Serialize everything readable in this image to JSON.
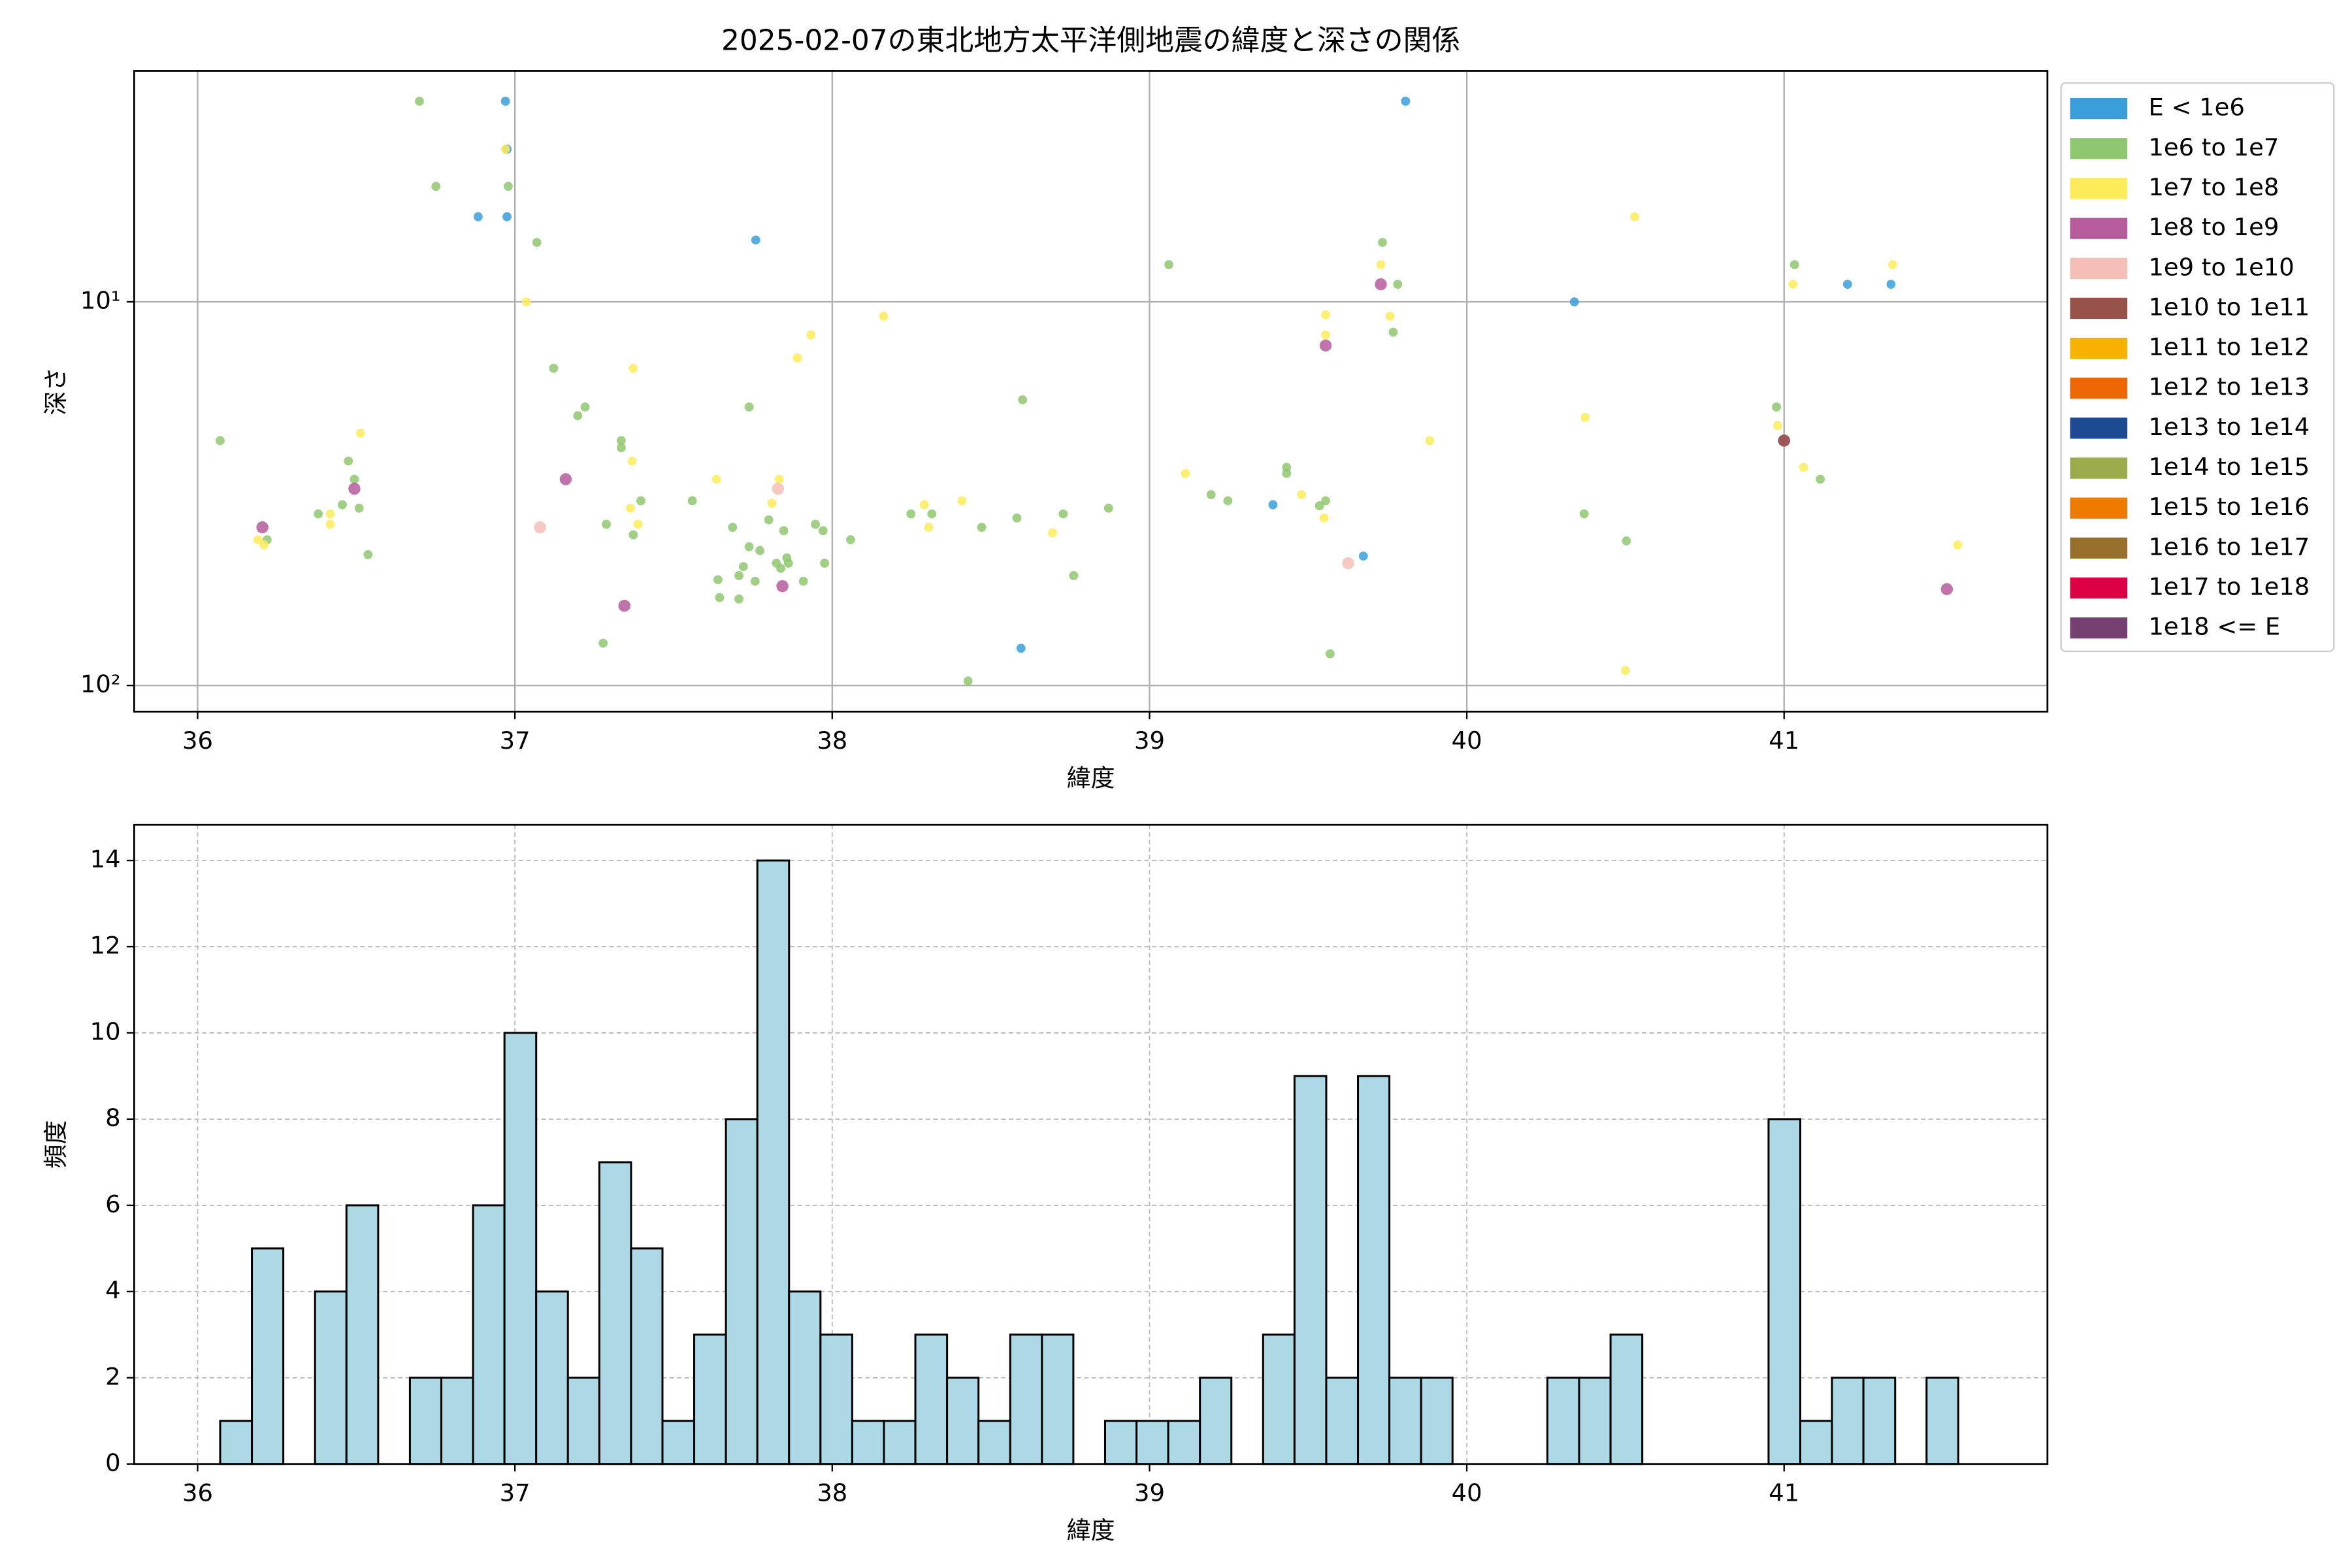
{
  "chart_data": [
    {
      "type": "scatter",
      "title": "2025-02-07の東北地方太平洋側地震の緯度と深さの関係",
      "xlabel": "緯度",
      "ylabel": "深さ",
      "xlim": [
        35.8,
        41.83
      ],
      "xticks": [
        36,
        37,
        38,
        39,
        40,
        41
      ],
      "ylim": [
        2.5,
        117
      ],
      "y_inverted": true,
      "log_y": true,
      "yticks": [
        {
          "value": 10,
          "label": "10¹"
        },
        {
          "value": 100,
          "label": "10²"
        }
      ],
      "grid": true,
      "legend": "outside right",
      "series": [
        {
          "name": "E < 1e6",
          "color": "#3a9edb",
          "x": [
            36.97,
            36.975,
            36.884,
            36.975,
            37.759,
            39.807,
            40.339,
            41.2,
            41.337,
            39.389,
            39.674,
            38.595
          ],
          "y": [
            3.0,
            4.0,
            6,
            6,
            6.9,
            3.0,
            10,
            9,
            9,
            33.8,
            46,
            80
          ]
        },
        {
          "name": "1e6 to 1e7",
          "color": "#8fc770",
          "x": [
            36.071,
            36.219,
            36.38,
            36.456,
            36.475,
            36.494,
            36.509,
            36.537,
            36.699,
            36.751,
            36.979,
            37.069,
            37.122,
            37.198,
            37.221,
            37.335,
            37.335,
            37.397,
            37.288,
            37.373,
            37.278,
            37.559,
            37.64,
            37.645,
            37.686,
            37.706,
            37.706,
            37.72,
            37.738,
            37.738,
            37.757,
            37.772,
            37.8,
            37.824,
            37.838,
            37.847,
            37.857,
            37.862,
            37.909,
            37.947,
            37.971,
            37.976,
            38.058,
            38.248,
            38.314,
            38.471,
            38.428,
            38.582,
            38.6,
            38.728,
            38.761,
            38.871,
            39.061,
            39.194,
            39.247,
            39.432,
            39.432,
            39.536,
            39.555,
            39.569,
            39.734,
            39.782,
            39.768,
            40.37,
            40.503,
            40.976,
            41.033,
            41.114
          ],
          "y": [
            23,
            41.7,
            35.7,
            33.8,
            26,
            29,
            34.5,
            45.6,
            3.0,
            5,
            5,
            7,
            14.9,
            19.8,
            18.8,
            23,
            24,
            33,
            38,
            40.5,
            77.6,
            33,
            53,
            59,
            38.7,
            51.7,
            59.5,
            49,
            43.5,
            18.8,
            53.5,
            44.5,
            37,
            48,
            49.5,
            39.5,
            46.5,
            48,
            53.5,
            38,
            39.5,
            48,
            41.7,
            35.7,
            35.7,
            38.7,
            97.3,
            36.6,
            18,
            35.7,
            51.7,
            34.5,
            8,
            31.8,
            33,
            27,
            28,
            34,
            33,
            82.7,
            7,
            9,
            12,
            35.7,
            42,
            18.8,
            8,
            29
          ]
        },
        {
          "name": "1e7 to 1e8",
          "color": "#fdec5a",
          "x": [
            36.19,
            36.209,
            36.418,
            36.418,
            36.513,
            36.97,
            37.036,
            37.373,
            37.369,
            37.364,
            37.388,
            37.635,
            37.81,
            37.833,
            37.89,
            37.933,
            38.162,
            38.29,
            38.304,
            38.409,
            38.694,
            39.113,
            39.479,
            39.55,
            39.555,
            39.555,
            39.729,
            39.758,
            39.883,
            40.373,
            40.529,
            40.5,
            40.98,
            41.028,
            41.061,
            41.342,
            41.547
          ],
          "y": [
            41.7,
            43,
            35.7,
            38,
            22,
            4,
            10,
            14.9,
            26,
            34.5,
            38,
            29,
            33.5,
            29,
            14,
            12.2,
            10.9,
            33.8,
            38.7,
            33,
            40,
            28,
            31.8,
            36.6,
            10.8,
            12.2,
            8,
            10.9,
            23,
            20,
            6,
            91.4,
            21,
            9,
            27,
            8,
            43
          ]
        },
        {
          "name": "1e8 to 1e9",
          "color": "#b65c9c",
          "x": [
            36.204,
            36.494,
            37.16,
            37.345,
            37.843,
            39.555,
            39.729,
            41.0,
            41.513
          ],
          "y": [
            38.7,
            30.7,
            29,
            62,
            55.1,
            13,
            9,
            23,
            56.1
          ]
        },
        {
          "name": "1e9 to 1e10",
          "color": "#f5bfb8",
          "x": [
            37.079,
            37.829,
            39.626
          ],
          "y": [
            38.7,
            30.7,
            48
          ]
        },
        {
          "name": "1e10 to 1e11",
          "color": "#97524a",
          "x": [
            41.0
          ],
          "y": [
            23
          ]
        },
        {
          "name": "1e11 to 1e12",
          "color": "#f7b200",
          "x": [],
          "y": []
        },
        {
          "name": "1e12 to 1e13",
          "color": "#ee6705",
          "x": [],
          "y": []
        },
        {
          "name": "1e13 to 1e14",
          "color": "#1c4a93",
          "x": [],
          "y": []
        },
        {
          "name": "1e14 to 1e15",
          "color": "#9bab4c",
          "x": [],
          "y": []
        },
        {
          "name": "1e15 to 1e16",
          "color": "#ee7a00",
          "x": [],
          "y": []
        },
        {
          "name": "1e16 to 1e17",
          "color": "#966f2b",
          "x": [],
          "y": []
        },
        {
          "name": "1e17 to 1e18",
          "color": "#dc0044",
          "x": [],
          "y": []
        },
        {
          "name": "1e18 <= E",
          "color": "#764170",
          "x": [],
          "y": []
        }
      ]
    },
    {
      "type": "histogram",
      "xlabel": "緯度",
      "ylabel": "頻度",
      "color": "#add8e6",
      "edgecolor": "#000000",
      "xlim": [
        35.8,
        41.83
      ],
      "xticks": [
        36,
        37,
        38,
        39,
        40,
        41
      ],
      "ylim": [
        0,
        14.83
      ],
      "yticks": [
        0,
        2,
        4,
        6,
        8,
        10,
        12,
        14
      ],
      "grid": true,
      "bins": [
        36.071,
        36.171,
        36.27,
        36.37,
        36.469,
        36.569,
        36.669,
        36.768,
        36.868,
        36.967,
        37.067,
        37.167,
        37.266,
        37.366,
        37.465,
        37.565,
        37.665,
        37.764,
        37.864,
        37.963,
        38.063,
        38.163,
        38.262,
        38.362,
        38.461,
        38.561,
        38.661,
        38.76,
        38.86,
        38.959,
        39.059,
        39.159,
        39.258,
        39.358,
        39.457,
        39.557,
        39.657,
        39.756,
        39.856,
        39.955,
        40.055,
        40.155,
        40.254,
        40.354,
        40.453,
        40.553,
        40.653,
        40.752,
        40.852,
        40.951,
        41.051,
        41.151,
        41.25,
        41.35,
        41.449,
        41.549
      ],
      "values": [
        1,
        5,
        0,
        4,
        6,
        0,
        2,
        2,
        6,
        10,
        4,
        2,
        7,
        5,
        1,
        3,
        8,
        14,
        4,
        3,
        1,
        1,
        3,
        2,
        1,
        3,
        3,
        0,
        1,
        1,
        1,
        2,
        0,
        3,
        9,
        2,
        9,
        2,
        2,
        0,
        0,
        0,
        2,
        2,
        3,
        0,
        0,
        0,
        0,
        8,
        1,
        2,
        2,
        0,
        2
      ]
    }
  ]
}
